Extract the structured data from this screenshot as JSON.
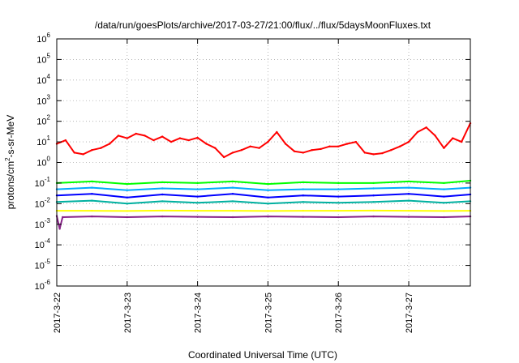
{
  "chart_data": {
    "type": "line",
    "title": "/data/run/goesPlots/archive/2017-03-27/21:00/flux/../flux/5daysMoonFluxes.txt",
    "xlabel": "Coordinated Universal Time (UTC)",
    "ylabel": {
      "base": "protons/cm",
      "exp": "2",
      "rest": "-s-sr-MeV"
    },
    "x_range": [
      "2017-03-22 00:00",
      "2017-03-27 21:00"
    ],
    "x_ticks": [
      "2017-3-22",
      "2017-3-23",
      "2017-3-24",
      "2017-3-25",
      "2017-3-26",
      "2017-3-27"
    ],
    "y_scale": "log",
    "ylim": [
      1e-06,
      1000000.0
    ],
    "y_ticks": [
      {
        "base": "10",
        "exp": "-6"
      },
      {
        "base": "10",
        "exp": "-5"
      },
      {
        "base": "10",
        "exp": "-4"
      },
      {
        "base": "10",
        "exp": "-3"
      },
      {
        "base": "10",
        "exp": "-2"
      },
      {
        "base": "10",
        "exp": "-1"
      },
      {
        "base": "10",
        "exp": "0"
      },
      {
        "base": "10",
        "exp": "1"
      },
      {
        "base": "10",
        "exp": "2"
      },
      {
        "base": "10",
        "exp": "3"
      },
      {
        "base": "10",
        "exp": "4"
      },
      {
        "base": "10",
        "exp": "5"
      },
      {
        "base": "10",
        "exp": "6"
      }
    ],
    "grid": true,
    "series": [
      {
        "color": "#ff0000",
        "x": [
          "2017-03-22 00:00",
          "2017-03-22 03:00",
          "2017-03-22 06:00",
          "2017-03-22 09:00",
          "2017-03-22 12:00",
          "2017-03-22 15:00",
          "2017-03-22 18:00",
          "2017-03-22 21:00",
          "2017-03-23 00:00",
          "2017-03-23 03:00",
          "2017-03-23 06:00",
          "2017-03-23 09:00",
          "2017-03-23 12:00",
          "2017-03-23 15:00",
          "2017-03-23 18:00",
          "2017-03-23 21:00",
          "2017-03-24 00:00",
          "2017-03-24 03:00",
          "2017-03-24 06:00",
          "2017-03-24 09:00",
          "2017-03-24 12:00",
          "2017-03-24 15:00",
          "2017-03-24 18:00",
          "2017-03-24 21:00",
          "2017-03-25 00:00",
          "2017-03-25 03:00",
          "2017-03-25 06:00",
          "2017-03-25 09:00",
          "2017-03-25 12:00",
          "2017-03-25 15:00",
          "2017-03-25 18:00",
          "2017-03-25 21:00",
          "2017-03-26 00:00",
          "2017-03-26 03:00",
          "2017-03-26 06:00",
          "2017-03-26 09:00",
          "2017-03-26 12:00",
          "2017-03-26 15:00",
          "2017-03-26 18:00",
          "2017-03-26 21:00",
          "2017-03-27 00:00",
          "2017-03-27 03:00",
          "2017-03-27 06:00",
          "2017-03-27 09:00",
          "2017-03-27 12:00",
          "2017-03-27 15:00",
          "2017-03-27 18:00",
          "2017-03-27 21:00"
        ],
        "y": [
          8,
          12,
          3,
          2.5,
          4,
          5,
          8,
          20,
          15,
          25,
          20,
          12,
          18,
          10,
          15,
          12,
          16,
          8,
          5,
          1.8,
          3,
          4,
          6,
          5,
          10,
          30,
          8,
          3.5,
          3,
          4,
          4.5,
          6,
          6,
          8,
          10,
          3,
          2.5,
          2.8,
          4,
          6,
          10,
          30,
          50,
          20,
          5,
          15,
          10,
          80
        ]
      },
      {
        "color": "#00ff00",
        "x": [
          "2017-03-22 00:00",
          "2017-03-22 12:00",
          "2017-03-23 00:00",
          "2017-03-23 12:00",
          "2017-03-24 00:00",
          "2017-03-24 12:00",
          "2017-03-25 00:00",
          "2017-03-25 12:00",
          "2017-03-26 00:00",
          "2017-03-26 12:00",
          "2017-03-27 00:00",
          "2017-03-27 12:00",
          "2017-03-27 21:00"
        ],
        "y": [
          0.1,
          0.12,
          0.09,
          0.11,
          0.1,
          0.12,
          0.09,
          0.11,
          0.1,
          0.1,
          0.12,
          0.1,
          0.13
        ]
      },
      {
        "color": "#00aaff",
        "x": [
          "2017-03-22 00:00",
          "2017-03-22 12:00",
          "2017-03-23 00:00",
          "2017-03-23 12:00",
          "2017-03-24 00:00",
          "2017-03-24 12:00",
          "2017-03-25 00:00",
          "2017-03-25 12:00",
          "2017-03-26 00:00",
          "2017-03-26 12:00",
          "2017-03-27 00:00",
          "2017-03-27 12:00",
          "2017-03-27 21:00"
        ],
        "y": [
          0.05,
          0.06,
          0.045,
          0.055,
          0.05,
          0.06,
          0.045,
          0.05,
          0.05,
          0.055,
          0.06,
          0.05,
          0.06
        ]
      },
      {
        "color": "#0000ff",
        "x": [
          "2017-03-22 00:00",
          "2017-03-22 12:00",
          "2017-03-23 00:00",
          "2017-03-23 12:00",
          "2017-03-24 00:00",
          "2017-03-24 12:00",
          "2017-03-25 00:00",
          "2017-03-25 12:00",
          "2017-03-26 00:00",
          "2017-03-26 12:00",
          "2017-03-27 00:00",
          "2017-03-27 12:00",
          "2017-03-27 21:00"
        ],
        "y": [
          0.025,
          0.03,
          0.02,
          0.028,
          0.022,
          0.03,
          0.02,
          0.025,
          0.022,
          0.025,
          0.03,
          0.022,
          0.028
        ]
      },
      {
        "color": "#00b0a0",
        "x": [
          "2017-03-22 00:00",
          "2017-03-22 12:00",
          "2017-03-23 00:00",
          "2017-03-23 12:00",
          "2017-03-24 00:00",
          "2017-03-24 12:00",
          "2017-03-25 00:00",
          "2017-03-25 12:00",
          "2017-03-26 00:00",
          "2017-03-26 12:00",
          "2017-03-27 00:00",
          "2017-03-27 12:00",
          "2017-03-27 21:00"
        ],
        "y": [
          0.012,
          0.014,
          0.01,
          0.013,
          0.011,
          0.013,
          0.01,
          0.012,
          0.011,
          0.012,
          0.014,
          0.011,
          0.013
        ]
      },
      {
        "color": "#ffff00",
        "x": [
          "2017-03-22 00:00",
          "2017-03-22 12:00",
          "2017-03-23 00:00",
          "2017-03-23 12:00",
          "2017-03-24 00:00",
          "2017-03-24 12:00",
          "2017-03-25 00:00",
          "2017-03-25 12:00",
          "2017-03-26 00:00",
          "2017-03-26 12:00",
          "2017-03-27 00:00",
          "2017-03-27 12:00",
          "2017-03-27 21:00"
        ],
        "y": [
          0.0045,
          0.0045,
          0.0044,
          0.0046,
          0.0045,
          0.0045,
          0.0044,
          0.0045,
          0.0045,
          0.0046,
          0.0045,
          0.0044,
          0.0045
        ]
      },
      {
        "color": "#882288",
        "x": [
          "2017-03-22 00:00",
          "2017-03-22 01:00",
          "2017-03-22 02:00",
          "2017-03-22 12:00",
          "2017-03-23 00:00",
          "2017-03-23 12:00",
          "2017-03-24 00:00",
          "2017-03-24 12:00",
          "2017-03-25 00:00",
          "2017-03-25 12:00",
          "2017-03-26 00:00",
          "2017-03-26 12:00",
          "2017-03-27 00:00",
          "2017-03-27 12:00",
          "2017-03-27 21:00"
        ],
        "y": [
          0.0025,
          0.0006,
          0.0022,
          0.0024,
          0.0022,
          0.0024,
          0.0023,
          0.0022,
          0.0024,
          0.0023,
          0.0022,
          0.0024,
          0.0023,
          0.0022,
          0.0024
        ]
      }
    ]
  }
}
